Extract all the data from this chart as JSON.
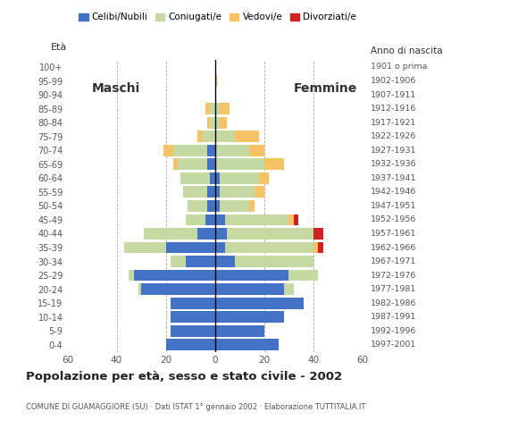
{
  "age_groups": [
    "0-4",
    "5-9",
    "10-14",
    "15-19",
    "20-24",
    "25-29",
    "30-34",
    "35-39",
    "40-44",
    "45-49",
    "50-54",
    "55-59",
    "60-64",
    "65-69",
    "70-74",
    "75-79",
    "80-84",
    "85-89",
    "90-94",
    "95-99",
    "100+"
  ],
  "birth_years": [
    "1997-2001",
    "1992-1996",
    "1987-1991",
    "1982-1986",
    "1977-1981",
    "1972-1976",
    "1967-1971",
    "1962-1966",
    "1957-1961",
    "1952-1956",
    "1947-1951",
    "1942-1946",
    "1937-1941",
    "1932-1936",
    "1927-1931",
    "1922-1926",
    "1917-1921",
    "1912-1916",
    "1907-1911",
    "1902-1906",
    "1901 o prima"
  ],
  "male": {
    "celibi": [
      20,
      18,
      18,
      18,
      30,
      33,
      12,
      20,
      7,
      4,
      3,
      3,
      2,
      3,
      3,
      0,
      0,
      0,
      0,
      0,
      0
    ],
    "coniugati": [
      0,
      0,
      0,
      0,
      1,
      2,
      6,
      17,
      22,
      8,
      8,
      10,
      12,
      12,
      14,
      5,
      2,
      2,
      0,
      0,
      0
    ],
    "vedovi": [
      0,
      0,
      0,
      0,
      0,
      0,
      0,
      0,
      0,
      0,
      0,
      0,
      0,
      2,
      4,
      2,
      1,
      2,
      0,
      0,
      0
    ],
    "divorziati": [
      0,
      0,
      0,
      0,
      0,
      0,
      0,
      0,
      0,
      0,
      0,
      0,
      0,
      0,
      0,
      0,
      0,
      0,
      0,
      0,
      0
    ]
  },
  "female": {
    "nubili": [
      26,
      20,
      28,
      36,
      28,
      30,
      8,
      4,
      5,
      4,
      2,
      2,
      2,
      0,
      0,
      0,
      0,
      0,
      0,
      0,
      0
    ],
    "coniugate": [
      0,
      0,
      0,
      0,
      4,
      12,
      32,
      36,
      35,
      26,
      12,
      14,
      16,
      20,
      14,
      8,
      2,
      2,
      0,
      0,
      0
    ],
    "vedove": [
      0,
      0,
      0,
      0,
      0,
      0,
      0,
      2,
      0,
      2,
      2,
      4,
      4,
      8,
      6,
      10,
      3,
      4,
      0,
      1,
      0
    ],
    "divorziate": [
      0,
      0,
      0,
      0,
      0,
      0,
      0,
      2,
      4,
      2,
      0,
      0,
      0,
      0,
      0,
      0,
      0,
      0,
      0,
      0,
      0
    ]
  },
  "colors": {
    "celibi": "#4472C4",
    "coniugati": "#C5D9A3",
    "vedovi": "#F5C265",
    "divorziati": "#CC2222"
  },
  "xlim": 60,
  "title": "Popolazione per età, sesso e stato civile - 2002",
  "subtitle": "COMUNE DI GUAMAGGIORE (SU) · Dati ISTAT 1° gennaio 2002 · Elaborazione TUTTITALIA.IT",
  "legend_labels": [
    "Celibi/Nubili",
    "Coniugati/e",
    "Vedovi/e",
    "Divorziati/e"
  ],
  "ylabel_left": "Età",
  "ylabel_right": "Anno di nascita",
  "label_maschi": "Maschi",
  "label_femmine": "Femmine"
}
